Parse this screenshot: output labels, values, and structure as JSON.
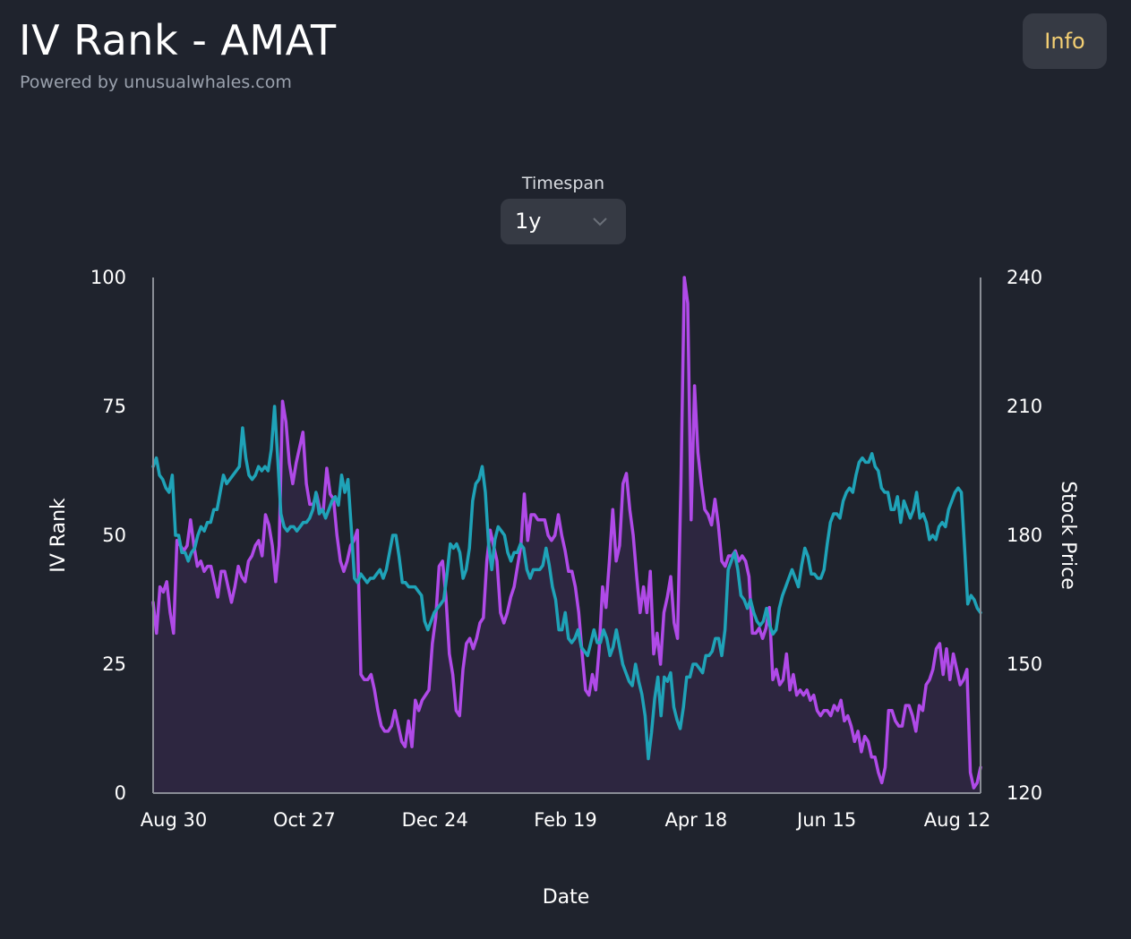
{
  "header": {
    "title": "IV Rank - AMAT",
    "subtitle": "Powered by unusualwhales.com",
    "info_label": "Info"
  },
  "timespan": {
    "label": "Timespan",
    "value": "1y",
    "chevron_icon": "chevron-down-icon"
  },
  "colors": {
    "iv_rank": "#b04ae8",
    "iv_rank_fill": "#2d2640",
    "stock_price": "#1fa3b8",
    "background": "#1f232d",
    "button_bg": "#363a44",
    "info_text": "#f4cf73"
  },
  "chart_data": {
    "type": "line",
    "xlabel": "Date",
    "x_ticks": [
      "Aug 30",
      "Oct 27",
      "Dec 24",
      "Feb 19",
      "Apr 18",
      "Jun 15",
      "Aug 12"
    ],
    "y_left": {
      "label": "IV Rank",
      "range": [
        0,
        100
      ],
      "ticks": [
        "0",
        "25",
        "50",
        "75",
        "100"
      ]
    },
    "y_right": {
      "label": "Stock Price",
      "range": [
        120,
        240
      ],
      "ticks": [
        "120",
        "150",
        "180",
        "210",
        "240"
      ]
    },
    "series": [
      {
        "axis": "left",
        "area": true,
        "values": [
          37,
          31,
          40,
          39,
          41,
          35,
          31,
          49,
          48,
          47,
          48,
          53,
          48,
          44,
          45,
          43,
          44,
          44,
          41,
          38,
          43,
          43,
          40,
          37,
          40,
          44,
          42,
          41,
          45,
          46,
          48,
          49,
          46,
          54,
          52,
          48,
          41,
          48,
          76,
          72,
          64,
          60,
          64,
          67,
          70,
          60,
          56,
          56,
          58,
          55,
          55,
          63,
          58,
          57,
          50,
          45,
          43,
          45,
          48,
          49,
          51,
          23,
          22,
          22,
          23,
          20,
          16,
          13,
          12,
          12,
          13,
          16,
          13,
          10,
          9,
          14,
          9,
          18,
          16,
          18,
          19,
          20,
          29,
          34,
          44,
          45,
          38,
          27,
          23,
          16,
          15,
          24,
          29,
          30,
          28,
          30,
          33,
          34,
          45,
          51,
          48,
          45,
          35,
          33,
          35,
          38,
          40,
          44,
          48,
          58,
          49,
          54,
          54,
          53,
          53,
          53,
          50,
          49,
          50,
          54,
          50,
          47,
          43,
          43,
          40,
          35,
          27,
          20,
          19,
          23,
          20,
          28,
          40,
          36,
          45,
          55,
          45,
          48,
          60,
          62,
          55,
          50,
          42,
          35,
          40,
          35,
          43,
          27,
          31,
          25,
          35,
          38,
          42,
          33,
          30,
          60,
          100,
          95,
          53,
          79,
          66,
          60,
          55,
          54,
          52,
          57,
          52,
          45,
          44,
          46,
          46,
          47,
          45,
          46,
          45,
          42,
          31,
          31,
          32,
          30,
          32,
          36,
          22,
          24,
          21,
          22,
          27,
          20,
          23,
          19,
          20,
          19,
          20,
          18,
          19,
          16,
          15,
          16,
          16,
          15,
          17,
          16,
          18,
          14,
          15,
          13,
          10,
          12,
          8,
          11,
          10,
          7,
          7,
          4,
          2,
          5,
          16,
          16,
          14,
          13,
          13,
          17,
          17,
          15,
          12,
          17,
          16,
          21,
          22,
          24,
          28,
          29,
          23,
          28,
          22,
          27,
          24,
          21,
          22,
          24,
          4,
          1,
          2,
          5
        ]
      },
      {
        "axis": "right",
        "area": false,
        "values": [
          196,
          198,
          194,
          193,
          191,
          190,
          194,
          180,
          180,
          176,
          176,
          174,
          176,
          177,
          180,
          182,
          181,
          183,
          183,
          186,
          186,
          190,
          194,
          192,
          193,
          194,
          195,
          196,
          205,
          198,
          194,
          193,
          194,
          196,
          195,
          196,
          195,
          200,
          210,
          198,
          185,
          182,
          181,
          182,
          182,
          181,
          182,
          183,
          183,
          184,
          186,
          190,
          185,
          186,
          184,
          186,
          188,
          189,
          187,
          194,
          190,
          193,
          182,
          170,
          169,
          171,
          170,
          169,
          170,
          170,
          171,
          172,
          170,
          172,
          176,
          180,
          180,
          175,
          169,
          169,
          168,
          168,
          168,
          167,
          166,
          160,
          158,
          160,
          162,
          163,
          164,
          165,
          171,
          178,
          177,
          178,
          176,
          170,
          172,
          177,
          188,
          192,
          193,
          196,
          190,
          178,
          172,
          179,
          182,
          181,
          180,
          176,
          174,
          176,
          176,
          178,
          177,
          172,
          170,
          172,
          172,
          172,
          173,
          177,
          173,
          168,
          165,
          158,
          158,
          162,
          156,
          155,
          156,
          158,
          154,
          153,
          152,
          155,
          158,
          155,
          155,
          158,
          156,
          152,
          154,
          158,
          154,
          150,
          148,
          146,
          145,
          150,
          146,
          143,
          138,
          128,
          134,
          142,
          147,
          138,
          147,
          146,
          148,
          140,
          137,
          135,
          140,
          147,
          147,
          150,
          150,
          149,
          148,
          152,
          152,
          153,
          156,
          156,
          152,
          158,
          172,
          174,
          176,
          172,
          166,
          165,
          163,
          165,
          162,
          160,
          159,
          160,
          163,
          159,
          157,
          158,
          163,
          166,
          168,
          170,
          172,
          170,
          168,
          173,
          177,
          175,
          171,
          171,
          170,
          170,
          172,
          178,
          183,
          185,
          185,
          184,
          188,
          190,
          191,
          190,
          194,
          197,
          198,
          197,
          197,
          199,
          196,
          195,
          191,
          190,
          190,
          186,
          186,
          189,
          183,
          188,
          186,
          184,
          186,
          190,
          184,
          185,
          183,
          179,
          180,
          179,
          182,
          183,
          182,
          186,
          188,
          190,
          191,
          190,
          177,
          164,
          166,
          165,
          163,
          162
        ]
      }
    ]
  }
}
